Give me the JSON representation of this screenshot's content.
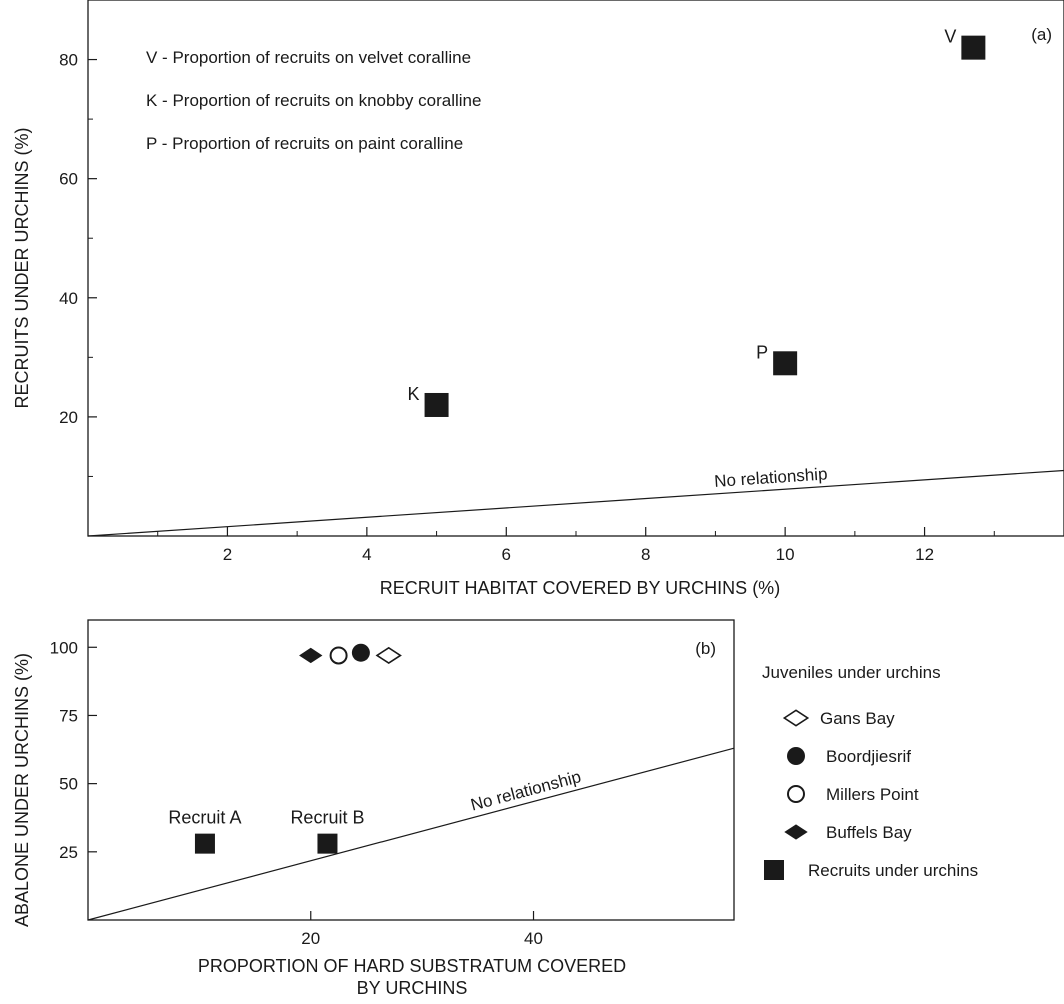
{
  "chart_data": [
    {
      "panel": "(a)",
      "type": "scatter",
      "xlabel": "RECRUIT HABITAT COVERED BY URCHINS (%)",
      "ylabel": "RECRUITS UNDER URCHINS (%)",
      "xlim": [
        0,
        14
      ],
      "ylim": [
        0,
        90
      ],
      "xticks": [
        2,
        4,
        6,
        8,
        10,
        12
      ],
      "yticks": [
        20,
        40,
        60,
        80
      ],
      "legend_lines": [
        "V - Proportion of recruits on velvet coralline",
        "K - Proportion of recruits on knobby coralline",
        "P - Proportion of recruits on paint coralline"
      ],
      "points": [
        {
          "label": "K",
          "x": 5.0,
          "y": 22,
          "marker": "square-filled"
        },
        {
          "label": "P",
          "x": 10.0,
          "y": 29,
          "marker": "square-filled"
        },
        {
          "label": "V",
          "x": 12.7,
          "y": 82,
          "marker": "square-filled"
        }
      ],
      "reference_line": {
        "label": "No relationship",
        "x": [
          0,
          14
        ],
        "y": [
          0,
          11
        ]
      }
    },
    {
      "panel": "(b)",
      "type": "scatter",
      "xlabel": "PROPORTION OF HARD SUBSTRATUM COVERED BY URCHINS",
      "ylabel": "ABALONE UNDER URCHINS (%)",
      "xlim": [
        0,
        58
      ],
      "ylim": [
        0,
        110
      ],
      "xticks": [
        20,
        40
      ],
      "yticks": [
        25,
        50,
        75,
        100
      ],
      "legend_title": "Juveniles under urchins",
      "legend_items": [
        {
          "label": "Gans Bay",
          "marker": "diamond-open"
        },
        {
          "label": "Boordjiesrif",
          "marker": "circle-filled"
        },
        {
          "label": "Millers Point",
          "marker": "circle-open"
        },
        {
          "label": "Buffels Bay",
          "marker": "diamond-filled"
        },
        {
          "label": "Recruits under urchins",
          "marker": "square-filled"
        }
      ],
      "points": [
        {
          "series": "Buffels Bay",
          "x": 20.0,
          "y": 97,
          "marker": "diamond-filled"
        },
        {
          "series": "Millers Point",
          "x": 22.5,
          "y": 97,
          "marker": "circle-open"
        },
        {
          "series": "Boordjiesrif",
          "x": 24.5,
          "y": 98,
          "marker": "circle-filled"
        },
        {
          "series": "Gans Bay",
          "x": 27.0,
          "y": 97,
          "marker": "diamond-open"
        },
        {
          "series": "Recruits under urchins",
          "label": "Recruit A",
          "x": 10.5,
          "y": 28,
          "marker": "square-filled"
        },
        {
          "series": "Recruits under urchins",
          "label": "Recruit B",
          "x": 21.5,
          "y": 28,
          "marker": "square-filled"
        }
      ],
      "reference_line": {
        "label": "No relationship",
        "x": [
          0,
          58
        ],
        "y": [
          0,
          63
        ]
      }
    }
  ]
}
